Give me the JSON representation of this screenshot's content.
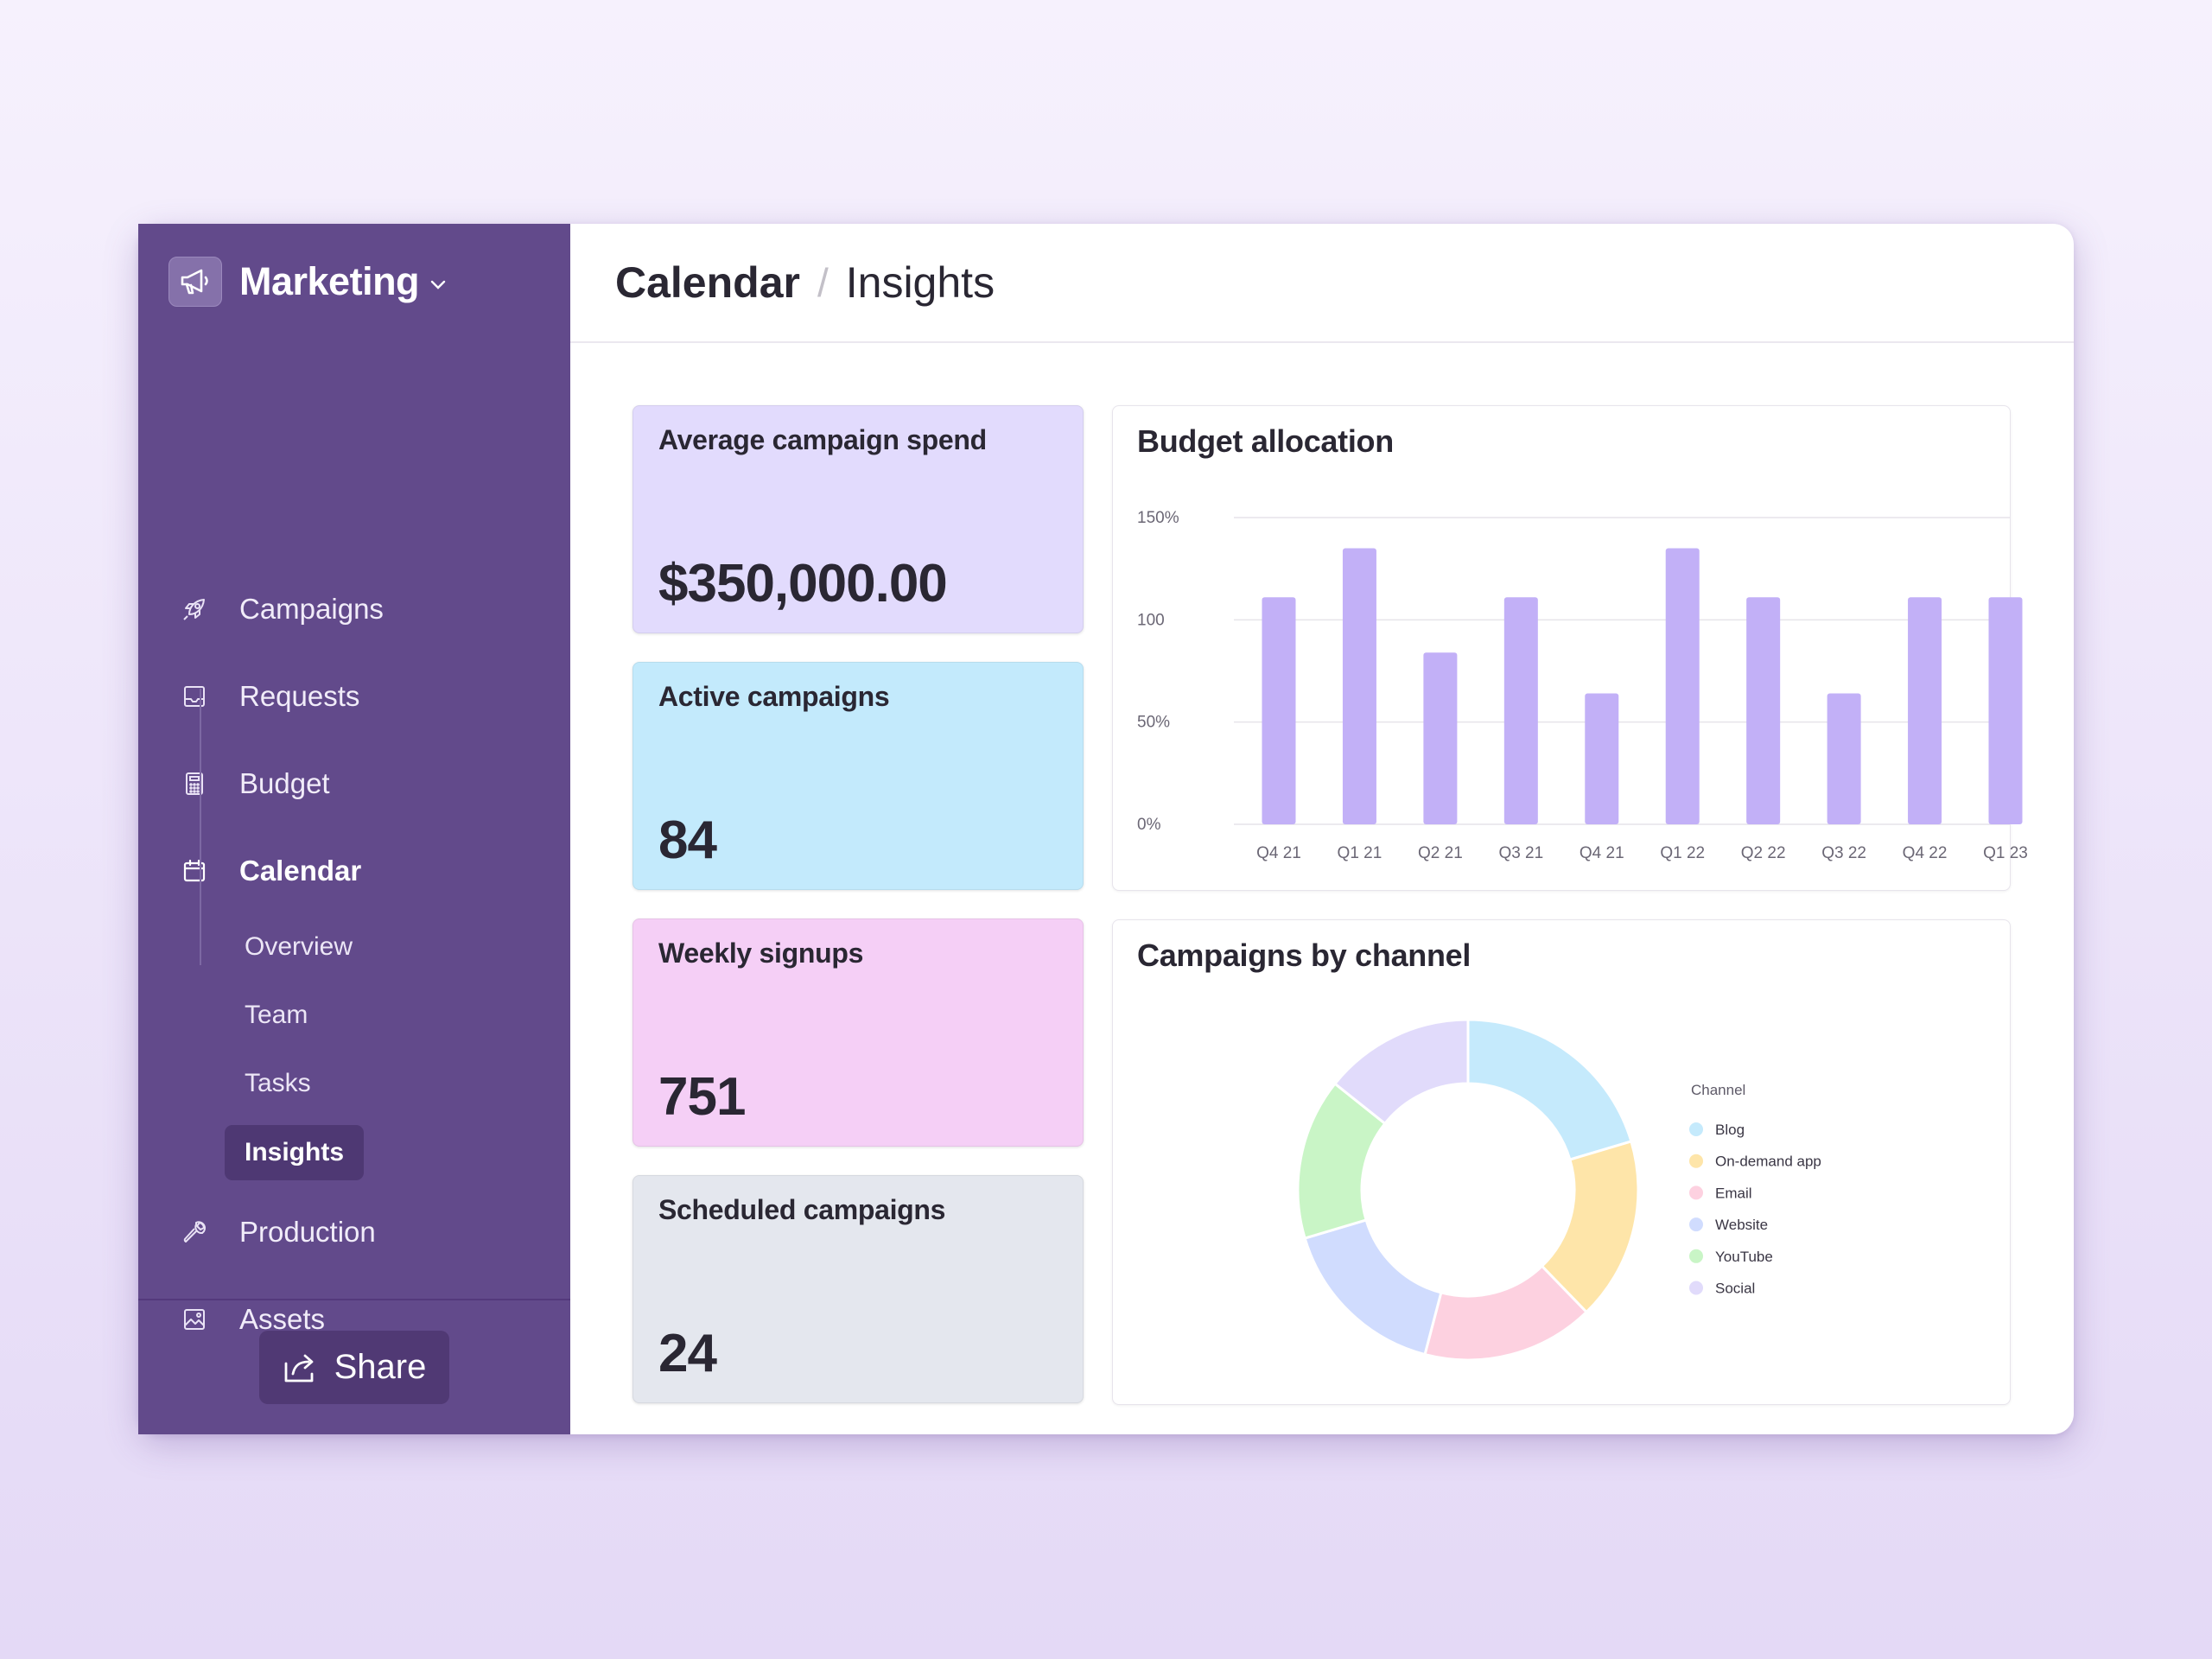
{
  "sidebar": {
    "brand": {
      "title": "Marketing",
      "icon": "megaphone-icon"
    },
    "nav": [
      {
        "label": "Campaigns",
        "icon": "rocket-icon"
      },
      {
        "label": "Requests",
        "icon": "inbox-icon"
      },
      {
        "label": "Budget",
        "icon": "calculator-icon"
      },
      {
        "label": "Calendar",
        "icon": "calendar-icon",
        "active": true
      },
      {
        "label": "Production",
        "icon": "wrench-icon"
      },
      {
        "label": "Assets",
        "icon": "image-icon"
      }
    ],
    "calendar_sub": [
      {
        "label": "Overview"
      },
      {
        "label": "Team"
      },
      {
        "label": "Tasks"
      },
      {
        "label": "Insights",
        "active": true
      }
    ],
    "share_label": "Share"
  },
  "header": {
    "crumb_parent": "Calendar",
    "separator": "/",
    "crumb_current": "Insights"
  },
  "stats": [
    {
      "title": "Average campaign spend",
      "value": "$350,000.00",
      "color": "#e2dbfd"
    },
    {
      "title": "Active campaigns",
      "value": "84",
      "color": "#c3eafc"
    },
    {
      "title": "Weekly signups",
      "value": "751",
      "color": "#f5cff6"
    },
    {
      "title": "Scheduled campaigns",
      "value": "24",
      "color": "#e4e7ee"
    }
  ],
  "colors": {
    "sidebar": "#624a8b",
    "accent": "#c2b0f7",
    "text": "#2a2733"
  },
  "chart_data": [
    {
      "type": "bar",
      "title": "Budget allocation",
      "categories": [
        "Q4 21",
        "Q1 21",
        "Q2 21",
        "Q3 21",
        "Q4 21",
        "Q1 22",
        "Q2 22",
        "Q3 22",
        "Q4 22",
        "Q1 23"
      ],
      "values": [
        111,
        135,
        84,
        111,
        64,
        135,
        111,
        64,
        111,
        111
      ],
      "y_ticks": [
        "0%",
        "50%",
        "100",
        "150%"
      ],
      "y_tick_values": [
        0,
        50,
        100,
        150
      ],
      "ylim": [
        0,
        150
      ],
      "grid": true,
      "bar_color": "#c2b0f7"
    },
    {
      "type": "pie",
      "title": "Campaigns by channel",
      "donut": true,
      "legend_title": "Channel",
      "legend_position": "right",
      "slices": [
        {
          "label": "Blog",
          "value": 20,
          "color": "#c5eafc"
        },
        {
          "label": "On-demand app",
          "value": 17,
          "color": "#fee5a9"
        },
        {
          "label": "Email",
          "value": 16,
          "color": "#fdd1e0"
        },
        {
          "label": "Website",
          "value": 16,
          "color": "#d0dcfe"
        },
        {
          "label": "YouTube",
          "value": 15,
          "color": "#c9f5c6"
        },
        {
          "label": "Social",
          "value": 14,
          "color": "#e1dbfb"
        }
      ]
    }
  ]
}
